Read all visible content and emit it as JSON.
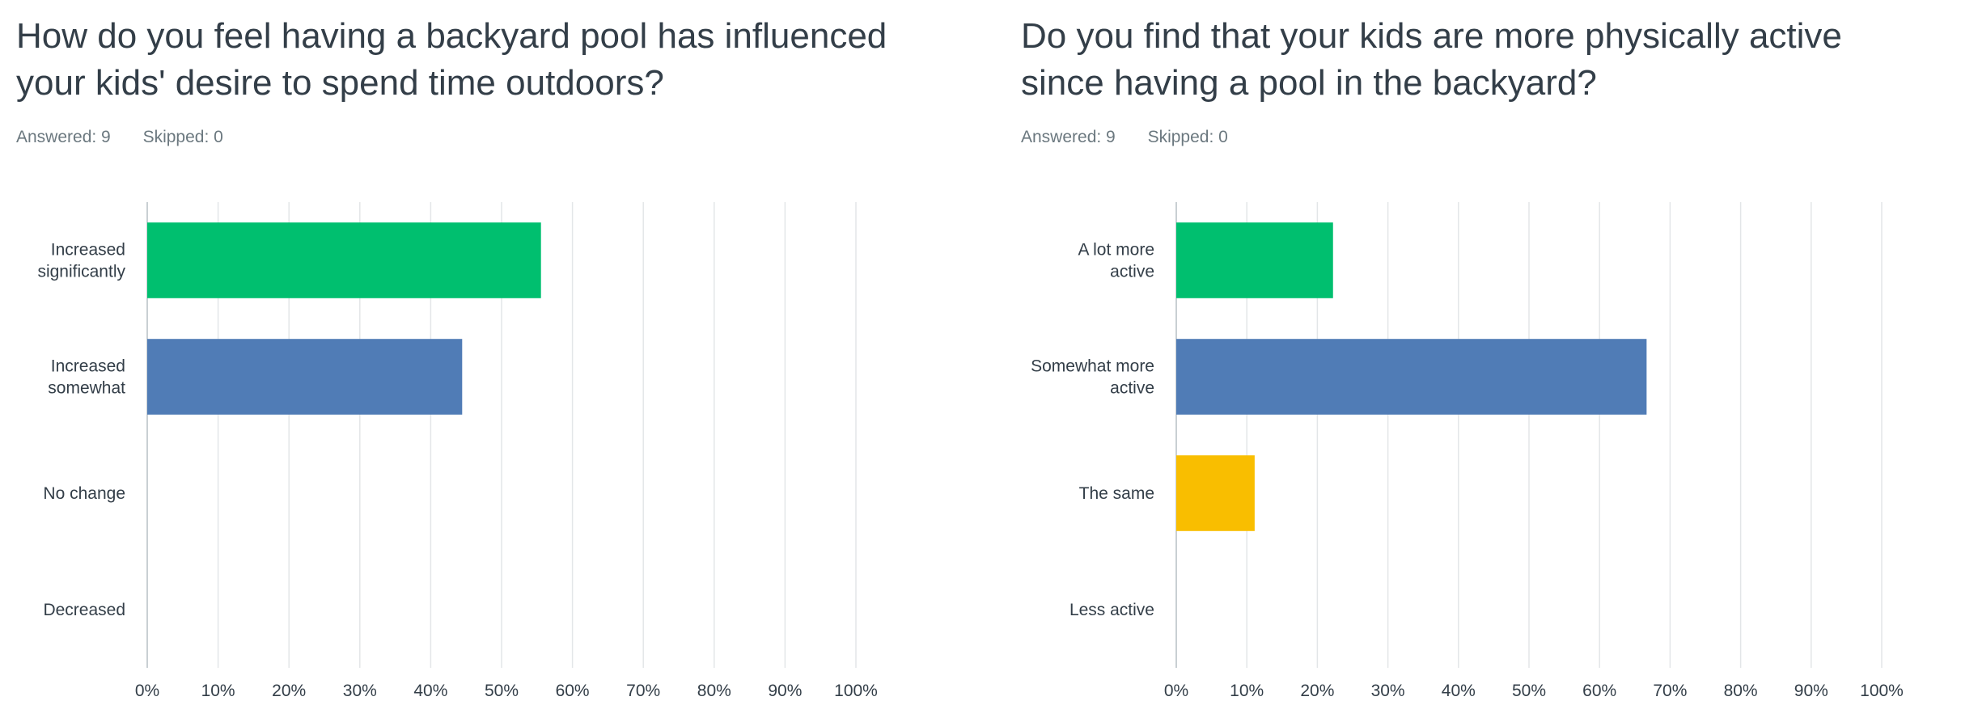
{
  "charts": [
    {
      "question": "How do you feel having a backyard pool has influenced\n your kids' desire to spend time outdoors?",
      "answered_label": "Answered: 9",
      "skipped_label": "Skipped: 0"
    },
    {
      "question": "Do you find that your kids are more physically active\nsince having a pool in the backyard?",
      "answered_label": "Answered: 9",
      "skipped_label": "Skipped: 0"
    }
  ],
  "chart_data": [
    {
      "type": "bar",
      "orientation": "horizontal",
      "categories": [
        "Increased\nsignificantly",
        "Increased\nsomewhat",
        "No change",
        "Decreased"
      ],
      "values": [
        55.56,
        44.44,
        0,
        0
      ],
      "colors": [
        "#00bf6f",
        "#507cb6",
        "#f9be00",
        "#6bc8cd"
      ],
      "xlim": [
        0,
        100
      ],
      "ticks": [
        "0%",
        "10%",
        "20%",
        "30%",
        "40%",
        "50%",
        "60%",
        "70%",
        "80%",
        "90%",
        "100%"
      ],
      "grid": true
    },
    {
      "type": "bar",
      "orientation": "horizontal",
      "categories": [
        "A lot more\nactive",
        "Somewhat more\nactive",
        "The same",
        "Less active"
      ],
      "values": [
        22.22,
        66.67,
        11.11,
        0
      ],
      "colors": [
        "#00bf6f",
        "#507cb6",
        "#f9be00",
        "#6bc8cd"
      ],
      "xlim": [
        0,
        100
      ],
      "ticks": [
        "0%",
        "10%",
        "20%",
        "30%",
        "40%",
        "50%",
        "60%",
        "70%",
        "80%",
        "90%",
        "100%"
      ],
      "grid": true
    }
  ]
}
